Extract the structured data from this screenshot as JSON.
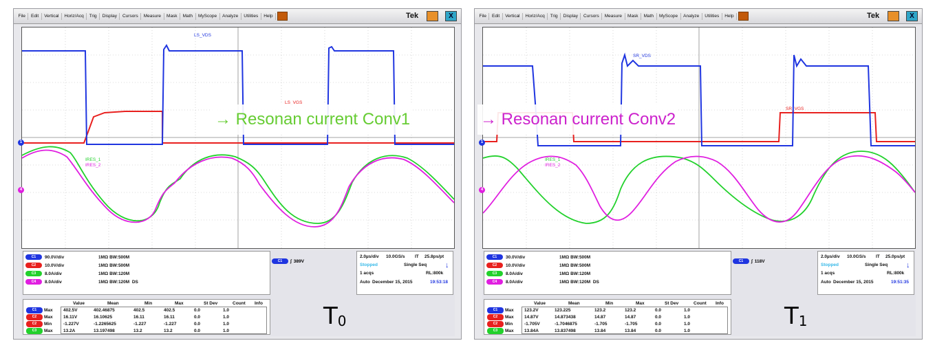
{
  "menu": [
    "File",
    "Edit",
    "Vertical",
    "Horiz/Acq",
    "Trig",
    "Display",
    "Cursors",
    "Measure",
    "Mask",
    "Math",
    "MyScope",
    "Analyze",
    "Utilities",
    "Help"
  ],
  "brand": "Tek",
  "close_glyph": "X",
  "colors": {
    "ch1": "#1f35e0",
    "ch2": "#e8201e",
    "ch3": "#22d12c",
    "ch4": "#e01ee0",
    "conv1_text": "#66cc33",
    "conv2_text": "#cc22cc"
  },
  "icons": [
    "arrow-right-icon",
    "minimize-icon",
    "close-icon",
    "menu-dropdown-icon",
    "trigger-edge-icon",
    "trigger-arrow-icon"
  ],
  "annotations": {
    "conv1": "→ Resonan current Conv1",
    "conv2": "→ Resonan current Conv2"
  },
  "meas_headers": [
    "Value",
    "Mean",
    "Min",
    "Max",
    "St Dev",
    "Count",
    "Info"
  ],
  "scopes": [
    {
      "trace_labels": {
        "vds": "LS_VDS",
        "vgs": "LS_VGS",
        "ires1": "IRES_1",
        "ires2": "IRES_2"
      },
      "channels": [
        {
          "id": "C1",
          "scale": "90.0V/div",
          "imp": "1MΩ",
          "bw": "BW:500M"
        },
        {
          "id": "C2",
          "scale": "10.0V/div",
          "imp": "1MΩ",
          "bw": "BW:500M"
        },
        {
          "id": "C3",
          "scale": "8.0A/div",
          "imp": "1MΩ",
          "bw": "BW:120M"
        },
        {
          "id": "C4",
          "scale": "8.0A/div",
          "imp": "1MΩ",
          "bw": "BW:120M"
        }
      ],
      "deskew_mark": "DS",
      "trigger": {
        "source": "C1",
        "level": "389V"
      },
      "timebase": {
        "rate": "2.0µs/div",
        "sample": "10.0GS/s",
        "mode": "IT",
        "res": "25.8ps/pt",
        "state": "Stopped",
        "seq": "Single Seq",
        "acqs": "1 acqs",
        "rl": "RL:800k",
        "auto": "Auto",
        "date": "December 15, 2015",
        "time": "19:53:18"
      },
      "meas": [
        {
          "ch": "C1",
          "type": "Max",
          "value": "402.5V",
          "mean": "402.46875",
          "min": "402.5",
          "max": "402.5",
          "stdev": "0.0",
          "count": "1.0"
        },
        {
          "ch": "C2",
          "type": "Max",
          "value": "16.11V",
          "mean": "16.10625",
          "min": "16.11",
          "max": "16.11",
          "stdev": "0.0",
          "count": "1.0"
        },
        {
          "ch": "C2",
          "type": "Min",
          "value": "-1.227V",
          "mean": "-1.2265625",
          "min": "-1.227",
          "max": "-1.227",
          "stdev": "0.0",
          "count": "1.0"
        },
        {
          "ch": "C3",
          "type": "Max",
          "value": "13.2A",
          "mean": "13.197498",
          "min": "13.2",
          "max": "13.2",
          "stdev": "0.0",
          "count": "1.0"
        }
      ],
      "t_label": "T",
      "t_sub": "0"
    },
    {
      "trace_labels": {
        "vds": "SR_VDS",
        "vgs": "SR_VGS",
        "ires1": "IRES_1",
        "ires2": "IRES_2"
      },
      "channels": [
        {
          "id": "C1",
          "scale": "30.0V/div",
          "imp": "1MΩ",
          "bw": "BW:500M"
        },
        {
          "id": "C2",
          "scale": "10.0V/div",
          "imp": "1MΩ",
          "bw": "BW:500M"
        },
        {
          "id": "C3",
          "scale": "8.0A/div",
          "imp": "1MΩ",
          "bw": "BW:120M"
        },
        {
          "id": "C4",
          "scale": "8.0A/div",
          "imp": "1MΩ",
          "bw": "BW:120M"
        }
      ],
      "deskew_mark": "DS",
      "trigger": {
        "source": "C1",
        "level": "118V"
      },
      "timebase": {
        "rate": "2.0µs/div",
        "sample": "10.0GS/s",
        "mode": "IT",
        "res": "25.0ps/pt",
        "state": "Stopped",
        "seq": "Single Seq",
        "acqs": "1 acqs",
        "rl": "RL:800k",
        "auto": "Auto",
        "date": "December 15, 2015",
        "time": "19:51:35"
      },
      "meas": [
        {
          "ch": "C1",
          "type": "Max",
          "value": "123.2V",
          "mean": "123.225",
          "min": "123.2",
          "max": "123.2",
          "stdev": "0.0",
          "count": "1.0"
        },
        {
          "ch": "C2",
          "type": "Max",
          "value": "14.87V",
          "mean": "14.873438",
          "min": "14.87",
          "max": "14.87",
          "stdev": "0.0",
          "count": "1.0"
        },
        {
          "ch": "C2",
          "type": "Min",
          "value": "-1.705V",
          "mean": "-1.7046875",
          "min": "-1.705",
          "max": "-1.705",
          "stdev": "0.0",
          "count": "1.0"
        },
        {
          "ch": "C3",
          "type": "Max",
          "value": "13.84A",
          "mean": "13.837498",
          "min": "13.84",
          "max": "13.84",
          "stdev": "0.0",
          "count": "1.0"
        }
      ],
      "t_label": "T",
      "t_sub": "1"
    }
  ]
}
